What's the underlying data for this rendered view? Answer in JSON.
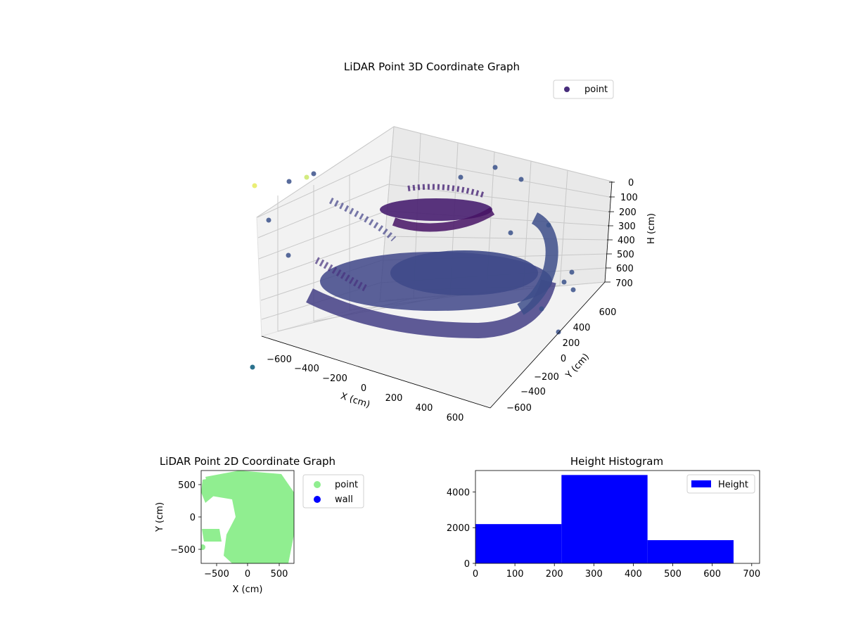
{
  "chart_data": [
    {
      "type": "scatter",
      "projection": "3d",
      "title": "LiDAR Point 3D Coordinate Graph",
      "xlabel": "X (cm)",
      "ylabel": "Y (cm)",
      "zlabel": "H (cm)",
      "xticks": [
        "−600",
        "−400",
        "−200",
        "0",
        "200",
        "400",
        "600"
      ],
      "yticks": [
        "−600",
        "−400",
        "−200",
        "0",
        "200",
        "400",
        "600"
      ],
      "zticks": [
        "0",
        "100",
        "200",
        "300",
        "400",
        "500",
        "600",
        "700"
      ],
      "xlim": [
        -700,
        700
      ],
      "ylim": [
        -700,
        700
      ],
      "zlim": [
        0,
        700
      ],
      "z_axis_inverted": true,
      "colormap": "viridis",
      "legend": {
        "entries": [
          "point"
        ],
        "placement": "top-right"
      },
      "grid": true,
      "points": [
        {
          "x": -700,
          "y": 0,
          "z": 60
        },
        {
          "x": -560,
          "y": 420,
          "z": 80
        },
        {
          "x": -480,
          "y": 580,
          "z": 120
        },
        {
          "x": 300,
          "y": 500,
          "z": 120
        },
        {
          "x": 560,
          "y": 300,
          "z": 100
        },
        {
          "x": -650,
          "y": -300,
          "z": 80
        }
      ]
    },
    {
      "type": "scatter",
      "title": "LiDAR Point 2D Coordinate Graph",
      "xlabel": "X (cm)",
      "ylabel": "Y (cm)",
      "xticks": [
        "−500",
        "0",
        "500"
      ],
      "yticks": [
        "−500",
        "0",
        "500"
      ],
      "xlim": [
        -720,
        720
      ],
      "ylim": [
        -720,
        720
      ],
      "legend": {
        "entries": [
          "point",
          "wall"
        ],
        "placement": "outside-right"
      },
      "series": [
        {
          "name": "point",
          "color": "#90ee90"
        },
        {
          "name": "wall",
          "color": "#0000ff"
        }
      ]
    },
    {
      "type": "bar",
      "title": "Height Histogram",
      "xticks": [
        "0",
        "100",
        "200",
        "300",
        "400",
        "500",
        "600",
        "700"
      ],
      "yticks": [
        "0",
        "2000",
        "4000"
      ],
      "xlim": [
        0,
        720
      ],
      "ylim": [
        0,
        5200
      ],
      "bins": [
        {
          "x0": 0,
          "x1": 218,
          "count": 2200
        },
        {
          "x0": 218,
          "x1": 436,
          "count": 4950
        },
        {
          "x0": 436,
          "x1": 654,
          "count": 1300
        }
      ],
      "legend": {
        "entries": [
          "Height"
        ],
        "placement": "top-right"
      },
      "color": "#0000ff"
    }
  ]
}
